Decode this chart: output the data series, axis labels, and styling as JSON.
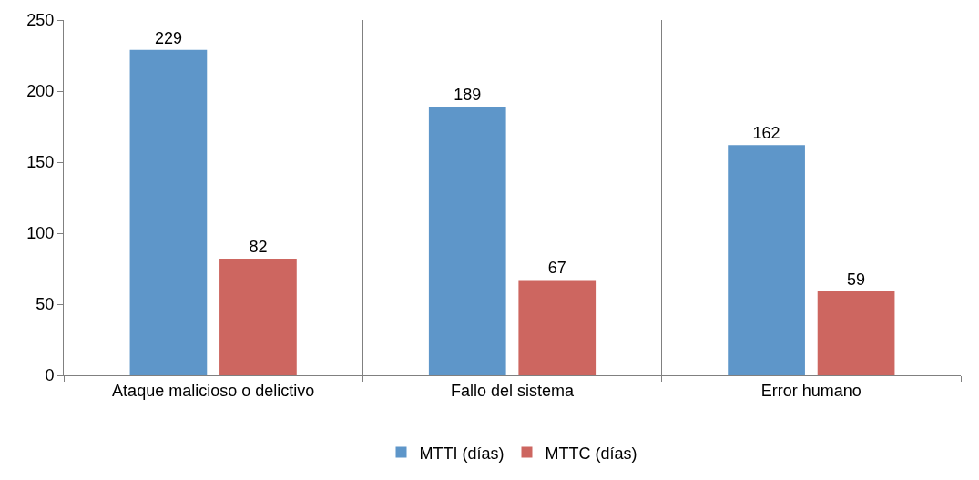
{
  "chart_data": {
    "type": "bar",
    "categories": [
      "Ataque malicioso o delictivo",
      "Fallo del sistema",
      "Error humano"
    ],
    "series": [
      {
        "name": "MTTI (días)",
        "color": "#5e96c9",
        "values": [
          229,
          189,
          162
        ]
      },
      {
        "name": "MTTC (días)",
        "color": "#cd6660",
        "values": [
          82,
          67,
          59
        ]
      }
    ],
    "ylim": [
      0,
      250
    ],
    "yticks": [
      0,
      50,
      100,
      150,
      200,
      250
    ],
    "data_labels": true,
    "grid": "x",
    "legend": "bottom"
  }
}
